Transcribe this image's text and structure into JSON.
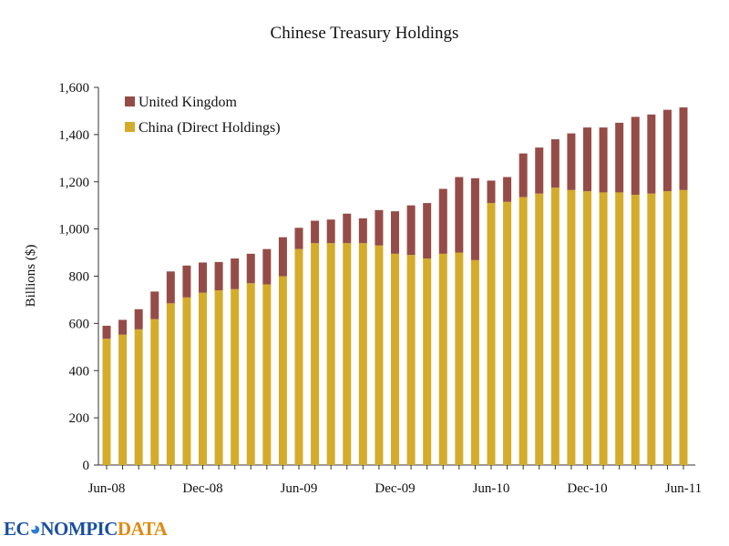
{
  "chart_data": {
    "type": "bar",
    "stacked": true,
    "title": "Chinese Treasury Holdings",
    "xlabel": "",
    "ylabel": "Billions ($)",
    "ylim": [
      0,
      1600
    ],
    "yticks": [
      "0",
      "200",
      "400",
      "600",
      "800",
      "1,000",
      "1,200",
      "1,400",
      "1,600"
    ],
    "xtick_labels": [
      "Jun-08",
      "Dec-08",
      "Jun-09",
      "Dec-09",
      "Jun-10",
      "Dec-10",
      "Jun-11"
    ],
    "categories": [
      "Jun-08",
      "Jul-08",
      "Aug-08",
      "Sep-08",
      "Oct-08",
      "Nov-08",
      "Dec-08",
      "Jan-09",
      "Feb-09",
      "Mar-09",
      "Apr-09",
      "May-09",
      "Jun-09",
      "Jul-09",
      "Aug-09",
      "Sep-09",
      "Oct-09",
      "Nov-09",
      "Dec-09",
      "Jan-10",
      "Feb-10",
      "Mar-10",
      "Apr-10",
      "May-10",
      "Jun-10",
      "Jul-10",
      "Aug-10",
      "Sep-10",
      "Oct-10",
      "Nov-10",
      "Dec-10",
      "Jan-11",
      "Feb-11",
      "Mar-11",
      "Apr-11",
      "May-11",
      "Jun-11"
    ],
    "series": [
      {
        "name": "China (Direct Holdings)",
        "color": "#d4ac2b",
        "values": [
          535,
          552,
          575,
          618,
          685,
          710,
          730,
          740,
          745,
          770,
          765,
          800,
          915,
          940,
          940,
          940,
          940,
          930,
          895,
          890,
          875,
          895,
          900,
          868,
          1110,
          1115,
          1135,
          1150,
          1175,
          1165,
          1160,
          1155,
          1155,
          1145,
          1150,
          1160,
          1165
        ]
      },
      {
        "name": "United Kingdom",
        "color": "#954c47",
        "values": [
          55,
          63,
          85,
          117,
          135,
          135,
          128,
          120,
          130,
          125,
          150,
          165,
          90,
          95,
          100,
          125,
          105,
          150,
          180,
          210,
          235,
          275,
          320,
          347,
          95,
          105,
          185,
          195,
          205,
          240,
          270,
          275,
          295,
          330,
          335,
          345,
          350
        ]
      }
    ],
    "legend": "top-left"
  },
  "logo": {
    "part1": "ECONOMIC",
    "text": "ECONOMICDATA",
    "a": "EC",
    "b": "NOMPIC",
    "c": "DATA"
  }
}
